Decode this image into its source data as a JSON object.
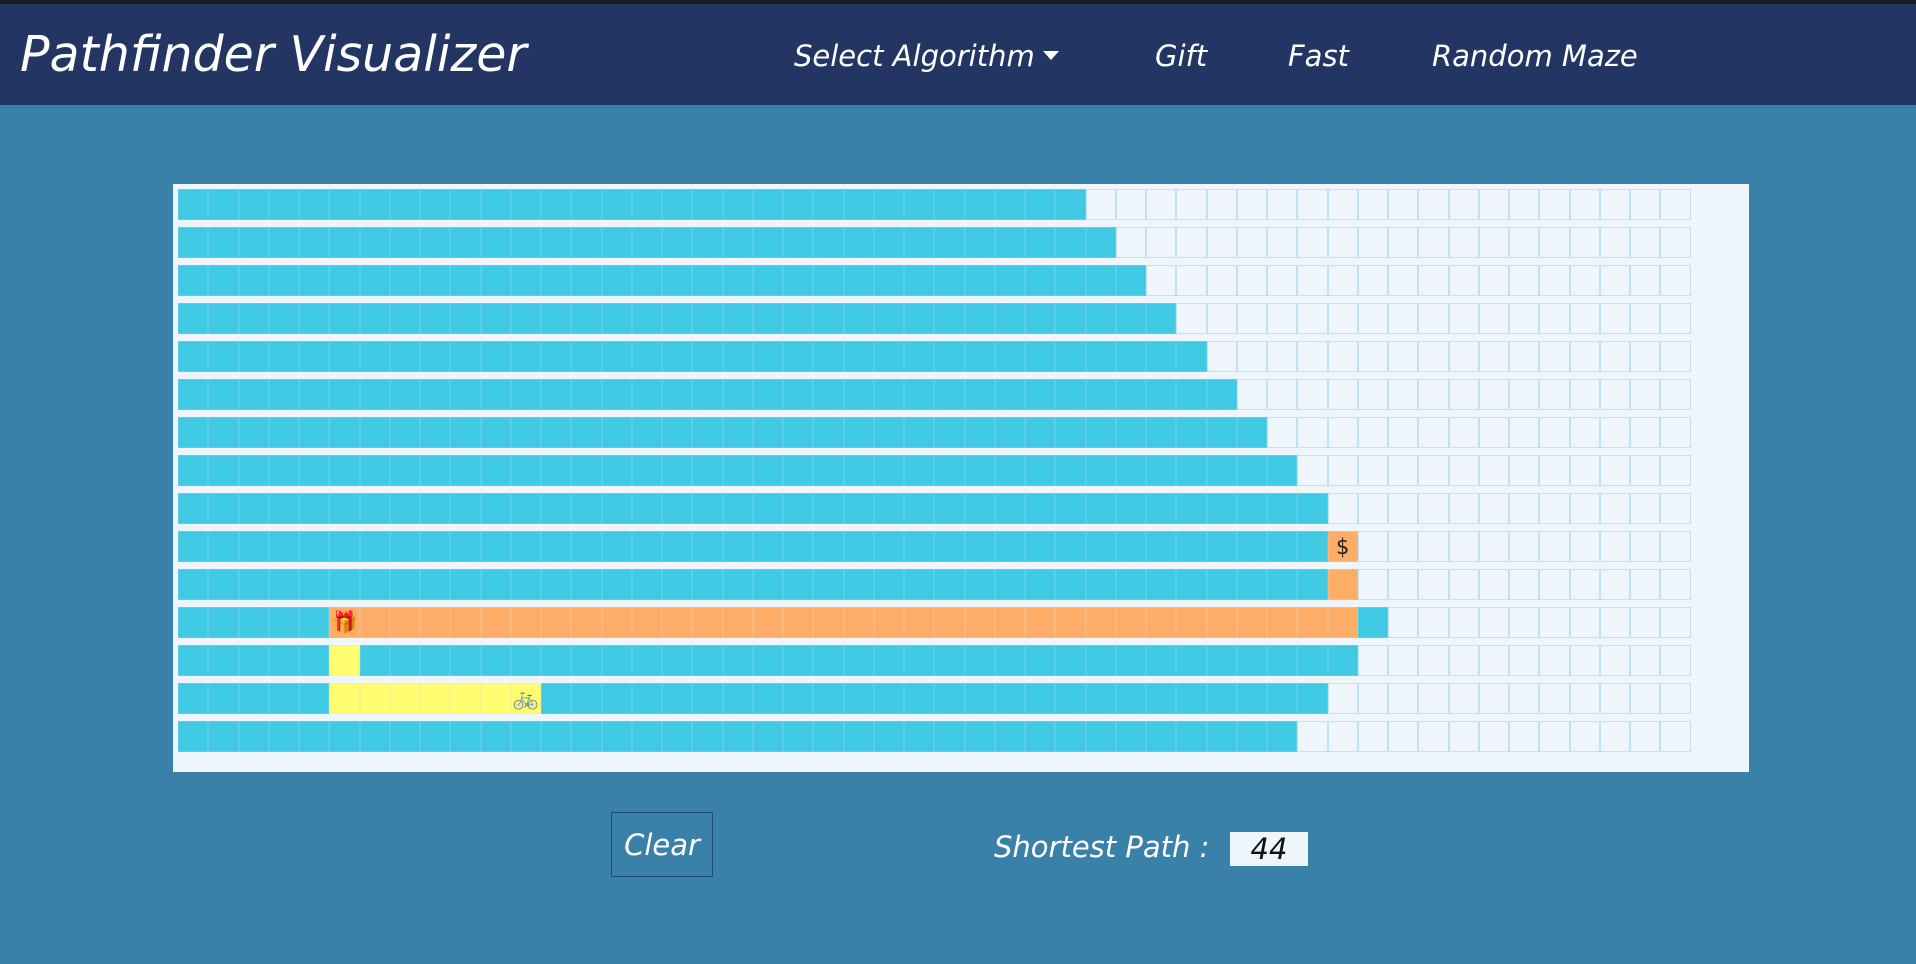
{
  "navbar": {
    "brand": "Pathfinder Visualizer",
    "select_algorithm_label": "Select Algorithm",
    "gift_label": "Gift",
    "fast_label": "Fast",
    "random_maze_label": "Random Maze"
  },
  "grid": {
    "rows": 15,
    "cols": 50,
    "visited_cells_per_row": [
      30,
      31,
      32,
      33,
      34,
      35,
      36,
      37,
      38,
      38,
      38,
      40,
      39,
      38,
      37
    ],
    "gift_path_orange": [
      [
        9,
        38
      ],
      [
        10,
        38
      ],
      [
        11,
        6
      ],
      [
        11,
        7
      ],
      [
        11,
        8
      ],
      [
        11,
        9
      ],
      [
        11,
        10
      ],
      [
        11,
        11
      ],
      [
        11,
        12
      ],
      [
        11,
        13
      ],
      [
        11,
        14
      ],
      [
        11,
        15
      ],
      [
        11,
        16
      ],
      [
        11,
        17
      ],
      [
        11,
        18
      ],
      [
        11,
        19
      ],
      [
        11,
        20
      ],
      [
        11,
        21
      ],
      [
        11,
        22
      ],
      [
        11,
        23
      ],
      [
        11,
        24
      ],
      [
        11,
        25
      ],
      [
        11,
        26
      ],
      [
        11,
        27
      ],
      [
        11,
        28
      ],
      [
        11,
        29
      ],
      [
        11,
        30
      ],
      [
        11,
        31
      ],
      [
        11,
        32
      ],
      [
        11,
        33
      ],
      [
        11,
        34
      ],
      [
        11,
        35
      ],
      [
        11,
        36
      ],
      [
        11,
        37
      ],
      [
        11,
        38
      ]
    ],
    "start_path_yellow": [
      [
        12,
        5
      ],
      [
        13,
        5
      ],
      [
        13,
        6
      ],
      [
        13,
        7
      ],
      [
        13,
        8
      ],
      [
        13,
        9
      ],
      [
        13,
        10
      ]
    ],
    "start_node": {
      "row": 13,
      "col": 11,
      "icon": "bicycle-icon",
      "glyph": "🚲"
    },
    "gift_node": {
      "row": 11,
      "col": 5,
      "icon": "gift-icon",
      "glyph": "🎁"
    },
    "target_node": {
      "row": 9,
      "col": 38,
      "icon": "dollar-icon",
      "glyph": "$"
    }
  },
  "controls": {
    "clear_label": "Clear",
    "shortest_path_label": "Shortest Path :",
    "shortest_path_value": "44"
  },
  "colors": {
    "background": "#3a81a9",
    "navbar": "#233663",
    "visited": "#3fc9e3",
    "path": "#fdad65",
    "path_secondary": "#fefe70",
    "unvisited": "#eef6fb"
  }
}
